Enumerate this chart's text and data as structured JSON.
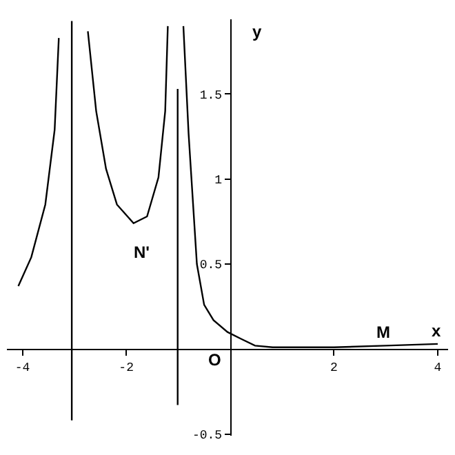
{
  "chart_data": {
    "type": "line",
    "xlabel": "x",
    "ylabel": "y",
    "xlim": [
      -4.3,
      4.2
    ],
    "ylim": [
      -0.51,
      1.94
    ],
    "xticks": [
      -4,
      -2,
      2,
      4
    ],
    "yticks": [
      -0.5,
      0.5,
      1,
      1.5
    ],
    "grid": false,
    "marker": "none",
    "line_style": "solid",
    "series": [
      {
        "color": "#000000",
        "x": [
          -4.08,
          -3.83,
          -3.56,
          -3.38,
          -3.3
        ],
        "values": [
          0.37,
          0.54,
          0.85,
          1.29,
          1.83
        ]
      },
      {
        "color": "#000000",
        "x": [
          -3.05,
          -3.05
        ],
        "values": [
          1.93,
          -0.42
        ]
      },
      {
        "color": "#000000",
        "x": [
          -2.74,
          -2.58,
          -2.39,
          -2.18,
          -1.86,
          -1.6,
          -1.38,
          -1.25,
          -1.2
        ],
        "values": [
          1.87,
          1.4,
          1.06,
          0.85,
          0.74,
          0.78,
          1.01,
          1.4,
          1.9
        ]
      },
      {
        "color": "#000000",
        "x": [
          -1.01,
          -1.01
        ],
        "values": [
          1.53,
          -0.33
        ]
      },
      {
        "color": "#000000",
        "x": [
          -0.9,
          -0.8,
          -0.64,
          -0.5,
          -0.32,
          -0.05,
          0.21,
          0.48,
          0.82,
          1.2,
          2,
          3,
          4
        ],
        "values": [
          1.9,
          1.27,
          0.5,
          0.26,
          0.17,
          0.1,
          0.06,
          0.02,
          0.01,
          0.01,
          0.01,
          0.02,
          0.03
        ]
      }
    ],
    "annotations": [
      "N'",
      "M",
      "O"
    ]
  }
}
